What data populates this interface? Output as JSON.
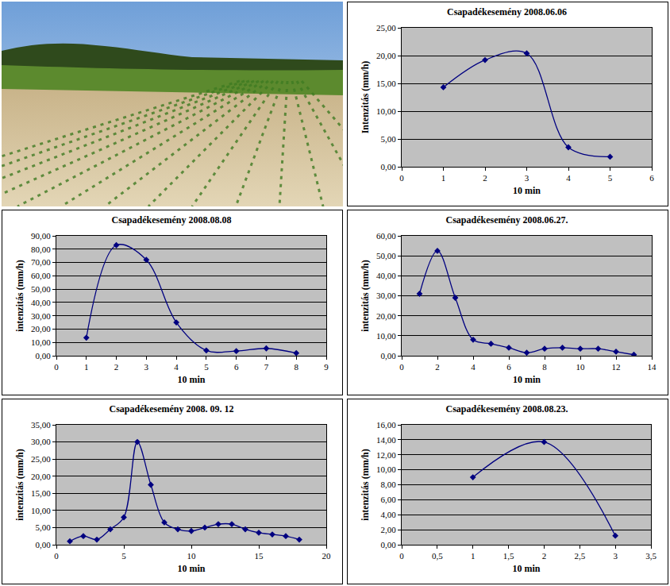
{
  "chart_data": [
    {
      "type": "line",
      "title": "Csapadékesemény 2008.06.06",
      "x_label": "10 min",
      "y_label": "Intenzitás (mm/h)",
      "x": [
        1,
        2,
        3,
        4,
        5
      ],
      "series": [
        {
          "name": "Intenzitás",
          "color": "#000080",
          "marker": "diamond",
          "line_style": "smooth",
          "values": [
            14.3,
            19.2,
            20.4,
            3.5,
            1.8
          ]
        }
      ],
      "xlim": [
        0,
        6
      ],
      "xticks": [
        0,
        1,
        2,
        3,
        4,
        5,
        6
      ],
      "ylim": [
        0,
        25
      ],
      "yticks": [
        {
          "value": 0,
          "label": "0,00"
        },
        {
          "value": 5,
          "label": "5,00"
        },
        {
          "value": 10,
          "label": "10,00"
        },
        {
          "value": 15,
          "label": "15,00"
        },
        {
          "value": 20,
          "label": "20,00"
        },
        {
          "value": 25,
          "label": "25,00"
        }
      ],
      "grid": true
    },
    {
      "type": "line",
      "title": "Csapadékesemény 2008.08.08",
      "x_label": "10 min",
      "y_label": "intenzitás (mm/h)",
      "x": [
        1,
        2,
        3,
        4,
        5,
        6,
        7,
        8
      ],
      "series": [
        {
          "name": "intenzitás",
          "color": "#000080",
          "marker": "diamond",
          "line_style": "smooth",
          "values": [
            13.5,
            83,
            72,
            25,
            4,
            3.5,
            5.5,
            2
          ]
        }
      ],
      "xlim": [
        0,
        9
      ],
      "xticks": [
        0,
        1,
        2,
        3,
        4,
        5,
        6,
        7,
        8,
        9
      ],
      "ylim": [
        0,
        90
      ],
      "yticks": [
        {
          "value": 0,
          "label": "0,00"
        },
        {
          "value": 10,
          "label": "10,00"
        },
        {
          "value": 20,
          "label": "20,00"
        },
        {
          "value": 30,
          "label": "30,00"
        },
        {
          "value": 40,
          "label": "40,00"
        },
        {
          "value": 50,
          "label": "50,00"
        },
        {
          "value": 60,
          "label": "60,00"
        },
        {
          "value": 70,
          "label": "70,00"
        },
        {
          "value": 80,
          "label": "80,00"
        },
        {
          "value": 90,
          "label": "90,00"
        }
      ],
      "grid": true
    },
    {
      "type": "line",
      "title": "Csapadékesemény 2008.06.27.",
      "x_label": "10 min",
      "y_label": "intenzitás (mm/h)",
      "x": [
        1,
        2,
        3,
        4,
        5,
        6,
        7,
        8,
        9,
        10,
        11,
        12,
        13
      ],
      "series": [
        {
          "name": "intenzitás",
          "color": "#000080",
          "marker": "diamond",
          "line_style": "smooth",
          "values": [
            31,
            52.5,
            29,
            8,
            6,
            4,
            1.5,
            3.5,
            4,
            3.5,
            3.5,
            2,
            0.5
          ]
        }
      ],
      "xlim": [
        0,
        14
      ],
      "xticks": [
        0,
        2,
        4,
        6,
        8,
        10,
        12,
        14
      ],
      "ylim": [
        0,
        60
      ],
      "yticks": [
        {
          "value": 0,
          "label": "0,00"
        },
        {
          "value": 10,
          "label": "10,00"
        },
        {
          "value": 20,
          "label": "20,00"
        },
        {
          "value": 30,
          "label": "30,00"
        },
        {
          "value": 40,
          "label": "40,00"
        },
        {
          "value": 50,
          "label": "50,00"
        },
        {
          "value": 60,
          "label": "60,00"
        }
      ],
      "grid": true
    },
    {
      "type": "line",
      "title": "Csapadékesemény 2008. 09. 12",
      "x_label": "10 min",
      "y_label": "intenzitás (mm/h)",
      "x": [
        1,
        2,
        3,
        4,
        5,
        6,
        7,
        8,
        9,
        10,
        11,
        12,
        13,
        14,
        15,
        16,
        17,
        18
      ],
      "series": [
        {
          "name": "intenzitás",
          "color": "#000080",
          "marker": "diamond",
          "line_style": "smooth",
          "values": [
            1,
            2.5,
            1.5,
            4.5,
            8,
            30,
            17.5,
            6.5,
            4.5,
            4,
            5,
            6,
            6,
            4.5,
            3.5,
            3,
            2.5,
            1.5
          ]
        }
      ],
      "xlim": [
        0,
        20
      ],
      "xticks": [
        0,
        5,
        10,
        15,
        20
      ],
      "ylim": [
        0,
        35
      ],
      "yticks": [
        {
          "value": 0,
          "label": "0,00"
        },
        {
          "value": 5,
          "label": "5,00"
        },
        {
          "value": 10,
          "label": "10,00"
        },
        {
          "value": 15,
          "label": "15,00"
        },
        {
          "value": 20,
          "label": "20,00"
        },
        {
          "value": 25,
          "label": "25,00"
        },
        {
          "value": 30,
          "label": "30,00"
        },
        {
          "value": 35,
          "label": "35,00"
        }
      ],
      "grid": true
    },
    {
      "type": "line",
      "title": "Csapadékesemény 2008.08.23.",
      "x_label": "10 min",
      "y_label": "intenzitás (mm/h)",
      "x": [
        1,
        2,
        3
      ],
      "series": [
        {
          "name": "intenzitás",
          "color": "#000080",
          "marker": "diamond",
          "line_style": "smooth",
          "values": [
            9,
            13.7,
            1.2
          ]
        }
      ],
      "xlim": [
        0,
        3.5
      ],
      "xticks": [
        0,
        {
          "value": 0.5,
          "label": "0,5"
        },
        1,
        {
          "value": 1.5,
          "label": "1,5"
        },
        2,
        {
          "value": 2.5,
          "label": "2,5"
        },
        3,
        {
          "value": 3.5,
          "label": "3,5"
        }
      ],
      "ylim": [
        0,
        16
      ],
      "yticks": [
        {
          "value": 0,
          "label": "0,00"
        },
        {
          "value": 2,
          "label": "2,00"
        },
        {
          "value": 4,
          "label": "4,00"
        },
        {
          "value": 6,
          "label": "6,00"
        },
        {
          "value": 8,
          "label": "8,00"
        },
        {
          "value": 10,
          "label": "10,00"
        },
        {
          "value": 12,
          "label": "12,00"
        },
        {
          "value": 14,
          "label": "14,00"
        },
        {
          "value": 16,
          "label": "16,00"
        }
      ],
      "grid": true
    }
  ]
}
